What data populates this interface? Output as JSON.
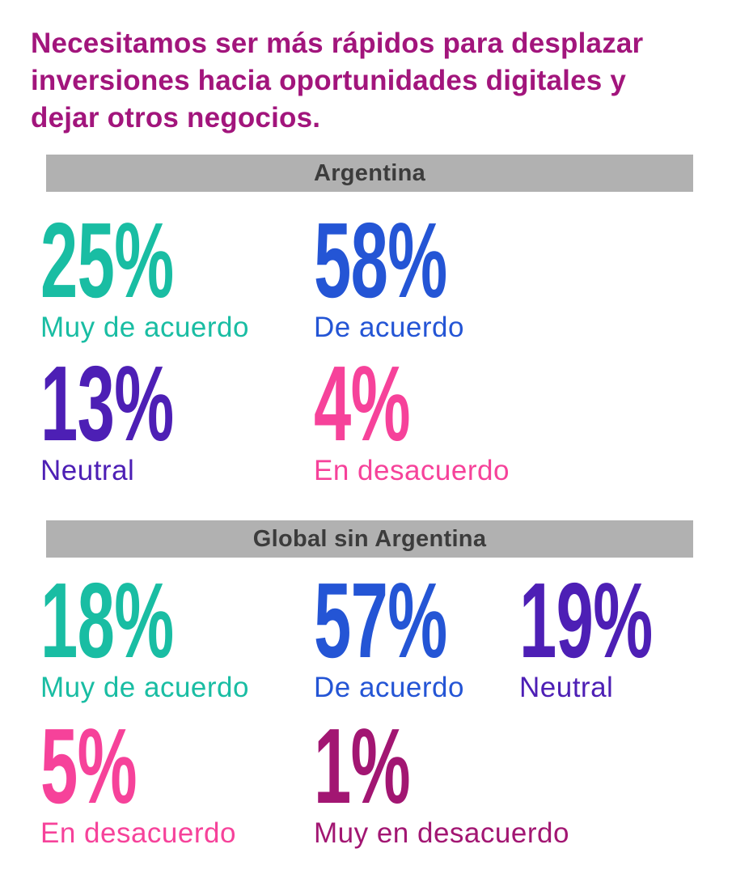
{
  "title": {
    "lines": [
      "Necesitamos ser más rápidos para desplazar",
      "inversiones hacia oportunidades digitales y",
      "dejar otros negocios."
    ],
    "color": "#a2157c"
  },
  "colors": {
    "banner_bg": "#b1b1b1",
    "banner_text": "#3c3c3c",
    "teal": "#19bda3",
    "blue": "#2455d5",
    "purple": "#4d1fb5",
    "pink": "#f6429a",
    "magenta": "#a21672"
  },
  "sections": [
    {
      "banner": "Argentina",
      "stats": [
        {
          "value": "25%",
          "label": "Muy de acuerdo",
          "color": "#19bda3"
        },
        {
          "value": "58%",
          "label": "De acuerdo",
          "color": "#2455d5"
        },
        {
          "value": "13%",
          "label": "Neutral",
          "color": "#4d1fb5"
        },
        {
          "value": "4%",
          "label": "En desacuerdo",
          "color": "#f6429a"
        }
      ]
    },
    {
      "banner": "Global sin Argentina",
      "stats": [
        {
          "value": "18%",
          "label": "Muy de acuerdo",
          "color": "#19bda3"
        },
        {
          "value": "57%",
          "label": "De acuerdo",
          "color": "#2455d5"
        },
        {
          "value": "19%",
          "label": "Neutral",
          "color": "#4d1fb5"
        },
        {
          "value": "5%",
          "label": "En desacuerdo",
          "color": "#f6429a"
        },
        {
          "value": "1%",
          "label": "Muy en desacuerdo",
          "color": "#a21672"
        }
      ]
    }
  ],
  "chart_data": {
    "type": "table",
    "title": "Necesitamos ser más rápidos para desplazar inversiones hacia oportunidades digitales y dejar otros negocios.",
    "unit": "%",
    "categories": [
      "Muy de acuerdo",
      "De acuerdo",
      "Neutral",
      "En desacuerdo",
      "Muy en desacuerdo"
    ],
    "series": [
      {
        "name": "Argentina",
        "values": [
          25,
          58,
          13,
          4,
          null
        ]
      },
      {
        "name": "Global sin Argentina",
        "values": [
          18,
          57,
          19,
          5,
          1
        ]
      }
    ]
  }
}
